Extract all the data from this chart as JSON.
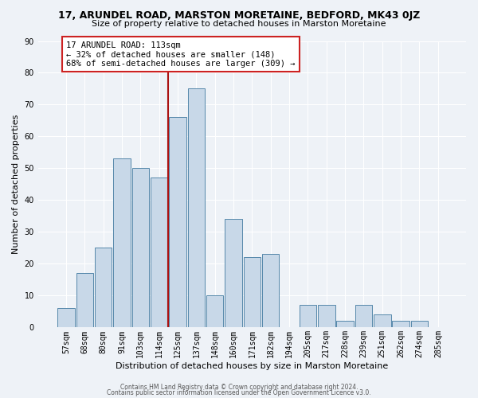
{
  "title": "17, ARUNDEL ROAD, MARSTON MORETAINE, BEDFORD, MK43 0JZ",
  "subtitle": "Size of property relative to detached houses in Marston Moretaine",
  "xlabel": "Distribution of detached houses by size in Marston Moretaine",
  "ylabel": "Number of detached properties",
  "categories": [
    "57sqm",
    "68sqm",
    "80sqm",
    "91sqm",
    "103sqm",
    "114sqm",
    "125sqm",
    "137sqm",
    "148sqm",
    "160sqm",
    "171sqm",
    "182sqm",
    "194sqm",
    "205sqm",
    "217sqm",
    "228sqm",
    "239sqm",
    "251sqm",
    "262sqm",
    "274sqm",
    "285sqm"
  ],
  "values": [
    6,
    17,
    25,
    53,
    50,
    47,
    66,
    75,
    10,
    34,
    22,
    23,
    0,
    7,
    7,
    2,
    7,
    4,
    2,
    2,
    0
  ],
  "bar_color": "#c8d8e8",
  "bar_edge_color": "#5588aa",
  "vline_x_index": 5.5,
  "vline_color": "#aa1111",
  "annotation_text": "17 ARUNDEL ROAD: 113sqm\n← 32% of detached houses are smaller (148)\n68% of semi-detached houses are larger (309) →",
  "annotation_box_facecolor": "#ffffff",
  "annotation_box_edgecolor": "#cc2222",
  "ylim": [
    0,
    90
  ],
  "yticks": [
    0,
    10,
    20,
    30,
    40,
    50,
    60,
    70,
    80,
    90
  ],
  "footer1": "Contains HM Land Registry data © Crown copyright and database right 2024.",
  "footer2": "Contains public sector information licensed under the Open Government Licence v3.0.",
  "bg_color": "#eef2f7",
  "grid_color": "#ffffff",
  "title_fontsize": 9,
  "subtitle_fontsize": 8,
  "tick_fontsize": 7,
  "ylabel_fontsize": 8,
  "xlabel_fontsize": 8,
  "annotation_fontsize": 7.5,
  "footer_fontsize": 5.5
}
